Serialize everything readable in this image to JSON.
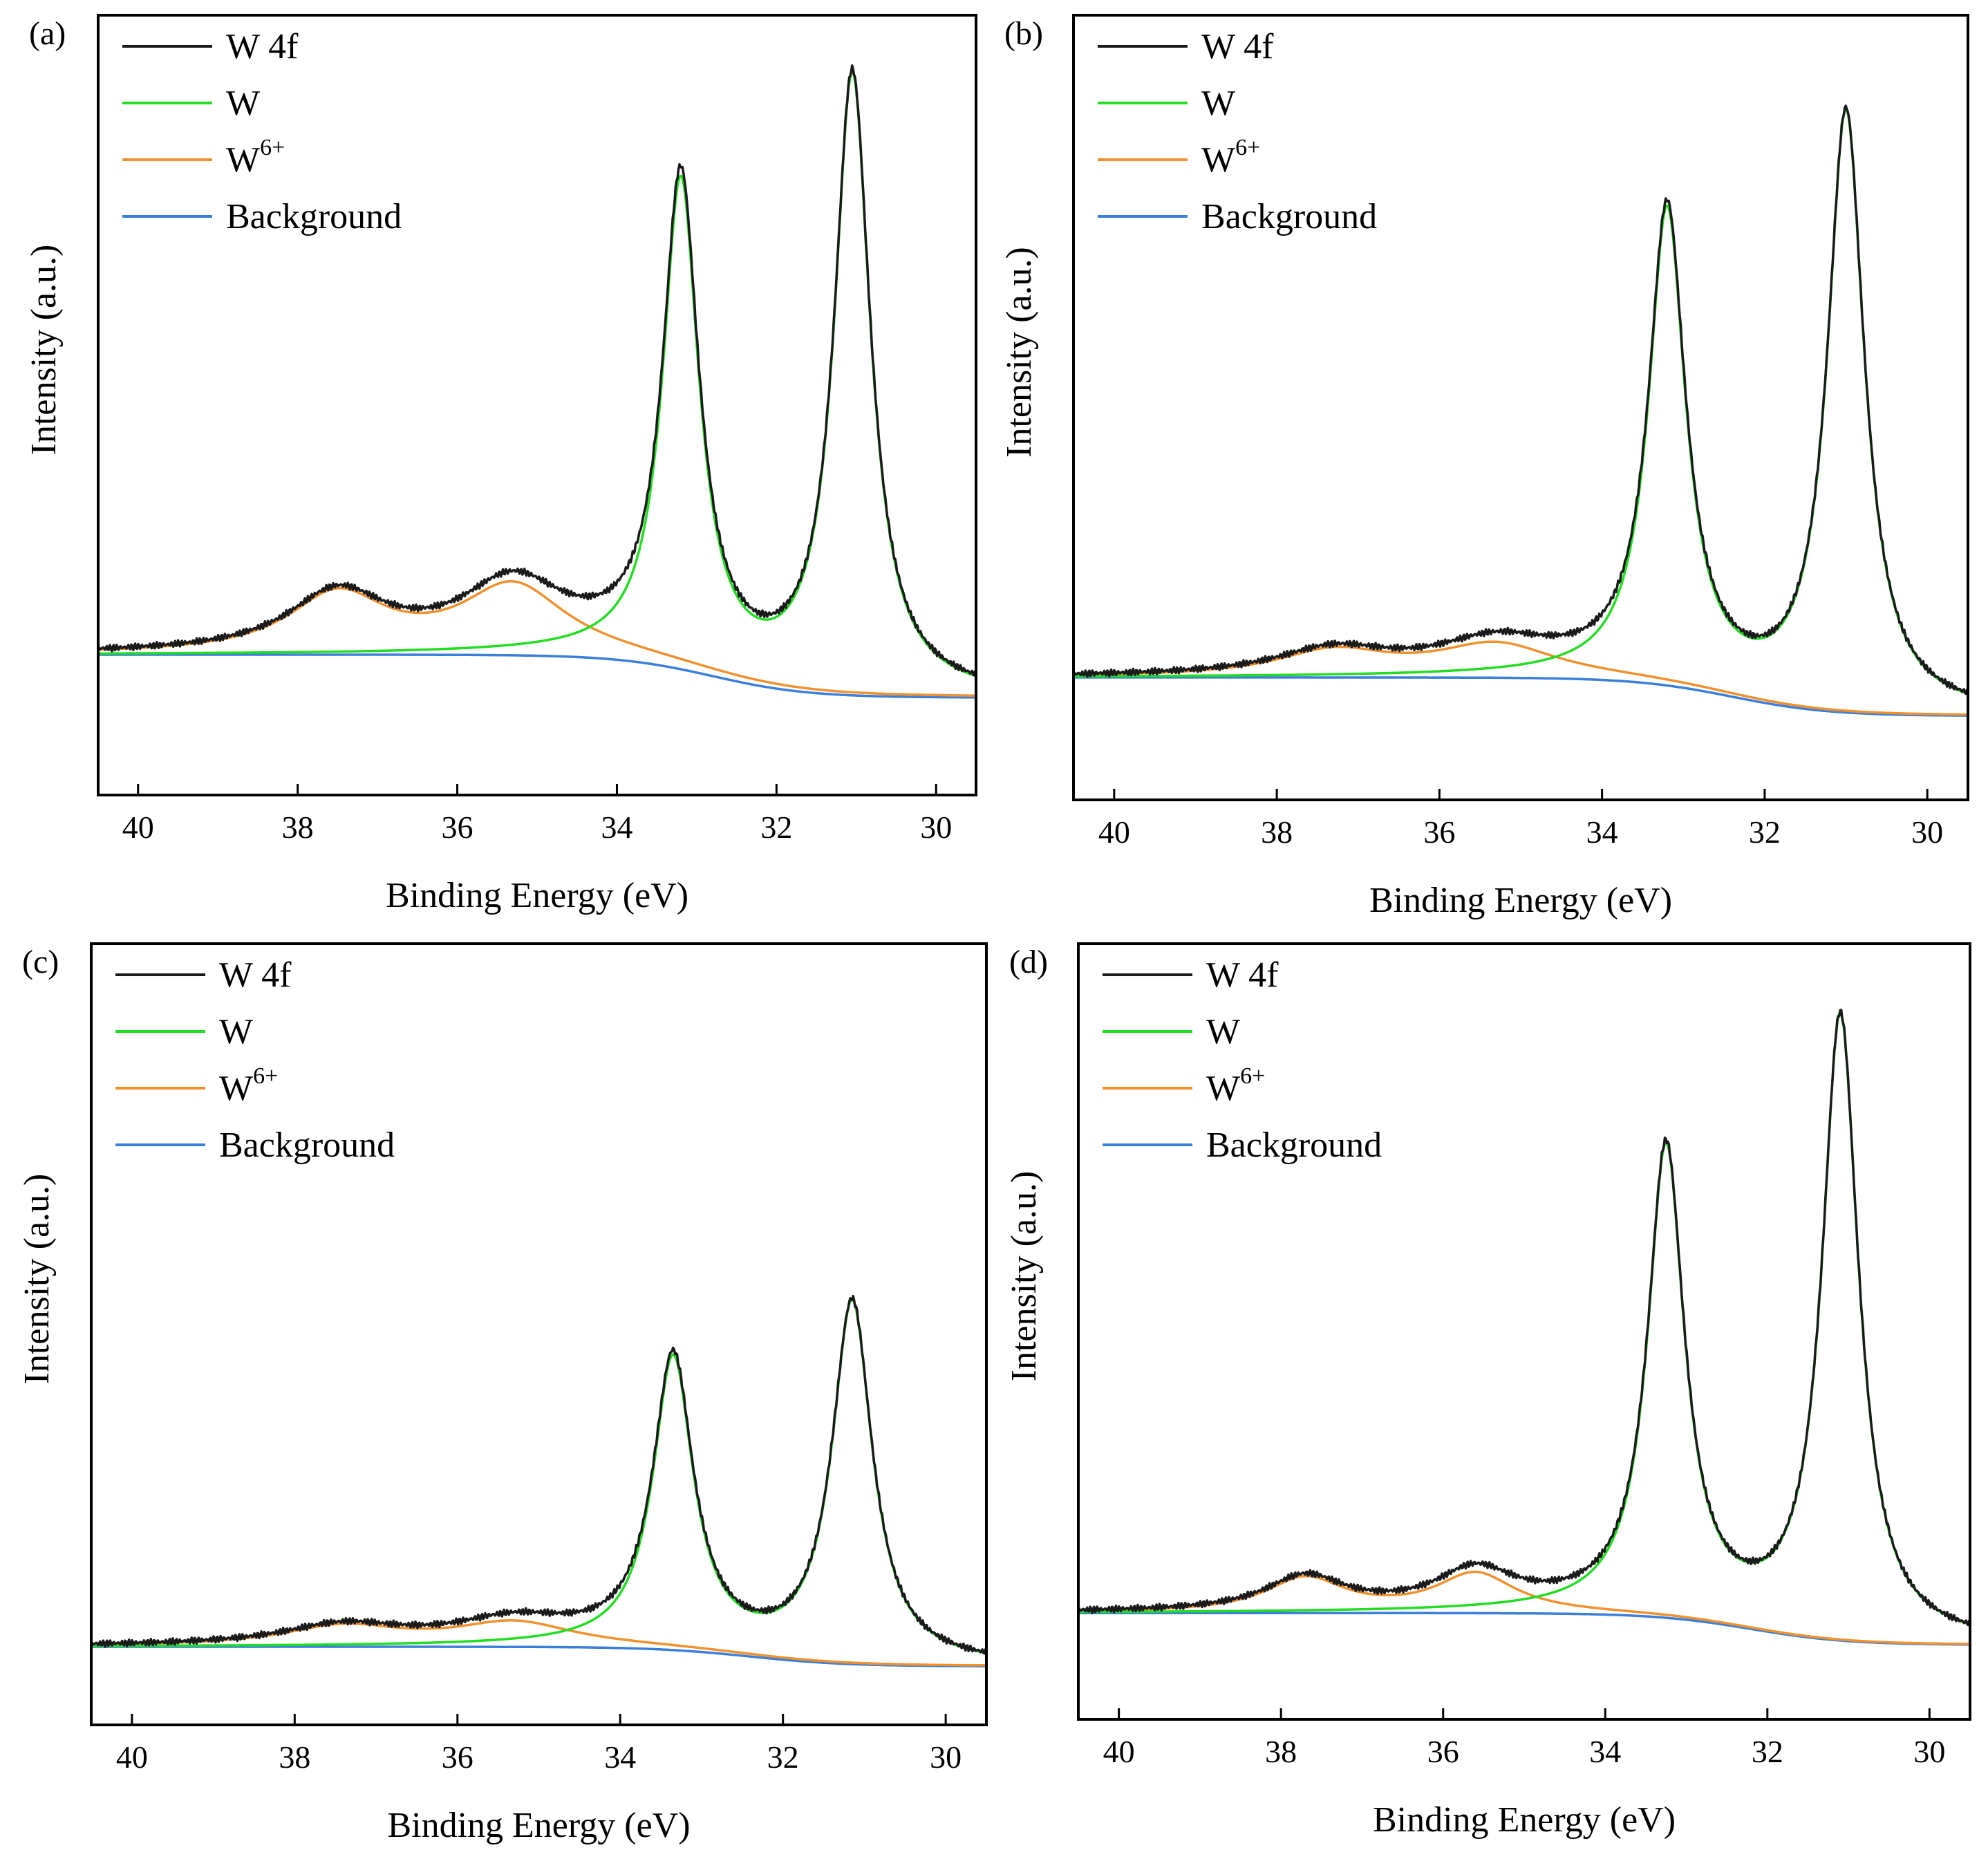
{
  "colors": {
    "w4f": "#1a1a1a",
    "w": "#22dd22",
    "w6": "#f0912e",
    "background": "#3a7fdc"
  },
  "chart_data": [
    {
      "type": "line",
      "panel_label": "(a)",
      "xlabel": "Binding Energy (eV)",
      "ylabel": "Intensity (a.u.)",
      "xlim": [
        40.5,
        29.5
      ],
      "x_reversed": true,
      "ylim": [
        0,
        1
      ],
      "y_tick_labels": false,
      "x_ticks": [
        40,
        38,
        36,
        34,
        32,
        30
      ],
      "x_tick_labels": [
        "40",
        "38",
        "36",
        "34",
        "32",
        "30"
      ],
      "legend": {
        "position": "top-left",
        "entries": [
          {
            "key": "w4f",
            "label": "W 4f"
          },
          {
            "key": "w",
            "label": "W"
          },
          {
            "key": "w6",
            "label": "W",
            "sup": "6+"
          },
          {
            "key": "background",
            "label": "Background"
          }
        ]
      },
      "background": {
        "start": 0.18,
        "end": 0.125,
        "step_center": 32.8
      },
      "w_peaks": [
        {
          "center": 33.2,
          "height": 0.62,
          "fwhm": 0.55
        },
        {
          "center": 31.05,
          "height": 0.79,
          "fwhm": 0.55
        }
      ],
      "w6_peaks": [
        {
          "center": 37.5,
          "height": 0.075,
          "fwhm": 1.5
        },
        {
          "center": 35.3,
          "height": 0.087,
          "fwhm": 1.6
        }
      ]
    },
    {
      "type": "line",
      "panel_label": "(b)",
      "xlabel": "Binding Energy (eV)",
      "ylabel": "Intensity (a.u.)",
      "xlim": [
        40.5,
        29.5
      ],
      "x_reversed": true,
      "ylim": [
        0,
        1
      ],
      "y_tick_labels": false,
      "x_ticks": [
        40,
        38,
        36,
        34,
        32,
        30
      ],
      "x_tick_labels": [
        "40",
        "38",
        "36",
        "34",
        "32",
        "30"
      ],
      "legend": {
        "position": "top-left",
        "entries": [
          {
            "key": "w4f",
            "label": "W 4f"
          },
          {
            "key": "w",
            "label": "W"
          },
          {
            "key": "w6",
            "label": "W",
            "sup": "6+"
          },
          {
            "key": "background",
            "label": "Background"
          }
        ]
      },
      "background": {
        "start": 0.156,
        "end": 0.107,
        "step_center": 32.4
      },
      "w_peaks": [
        {
          "center": 33.2,
          "height": 0.6,
          "fwhm": 0.55
        },
        {
          "center": 31.0,
          "height": 0.76,
          "fwhm": 0.55
        }
      ],
      "w6_peaks": [
        {
          "center": 37.3,
          "height": 0.032,
          "fwhm": 1.7
        },
        {
          "center": 35.3,
          "height": 0.041,
          "fwhm": 1.8
        }
      ]
    },
    {
      "type": "line",
      "panel_label": "(c)",
      "xlabel": "Binding Energy (eV)",
      "ylabel": "Intensity (a.u.)",
      "xlim": [
        40.5,
        29.5
      ],
      "x_reversed": true,
      "ylim": [
        0,
        1
      ],
      "y_tick_labels": false,
      "x_ticks": [
        40,
        38,
        36,
        34,
        32,
        30
      ],
      "x_tick_labels": [
        "40",
        "38",
        "36",
        "34",
        "32",
        "30"
      ],
      "legend": {
        "position": "top-left",
        "entries": [
          {
            "key": "w4f",
            "label": "W 4f"
          },
          {
            "key": "w",
            "label": "W"
          },
          {
            "key": "w6",
            "label": "W",
            "sup": "6+"
          },
          {
            "key": "background",
            "label": "Background"
          }
        ]
      },
      "background": {
        "start": 0.1,
        "end": 0.075,
        "step_center": 32.4
      },
      "w_peaks": [
        {
          "center": 33.35,
          "height": 0.37,
          "fwhm": 0.6
        },
        {
          "center": 31.15,
          "height": 0.46,
          "fwhm": 0.6
        }
      ],
      "w6_peaks": [
        {
          "center": 37.4,
          "height": 0.025,
          "fwhm": 1.8
        },
        {
          "center": 35.3,
          "height": 0.03,
          "fwhm": 1.8
        }
      ]
    },
    {
      "type": "line",
      "panel_label": "(d)",
      "xlabel": "Binding Energy (eV)",
      "ylabel": "Intensity (a.u.)",
      "xlim": [
        40.5,
        29.5
      ],
      "x_reversed": true,
      "ylim": [
        0,
        1
      ],
      "y_tick_labels": false,
      "x_ticks": [
        40,
        38,
        36,
        34,
        32,
        30
      ],
      "x_tick_labels": [
        "40",
        "38",
        "36",
        "34",
        "32",
        "30"
      ],
      "legend": {
        "position": "top-left",
        "entries": [
          {
            "key": "w4f",
            "label": "W 4f"
          },
          {
            "key": "w",
            "label": "W"
          },
          {
            "key": "w6",
            "label": "W",
            "sup": "6+"
          },
          {
            "key": "background",
            "label": "Background"
          }
        ]
      },
      "background": {
        "start": 0.137,
        "end": 0.096,
        "step_center": 32.2
      },
      "w_peaks": [
        {
          "center": 33.25,
          "height": 0.6,
          "fwhm": 0.55
        },
        {
          "center": 31.1,
          "height": 0.8,
          "fwhm": 0.55
        }
      ],
      "w6_peaks": [
        {
          "center": 37.7,
          "height": 0.044,
          "fwhm": 1.2
        },
        {
          "center": 35.6,
          "height": 0.05,
          "fwhm": 1.2
        }
      ]
    }
  ]
}
